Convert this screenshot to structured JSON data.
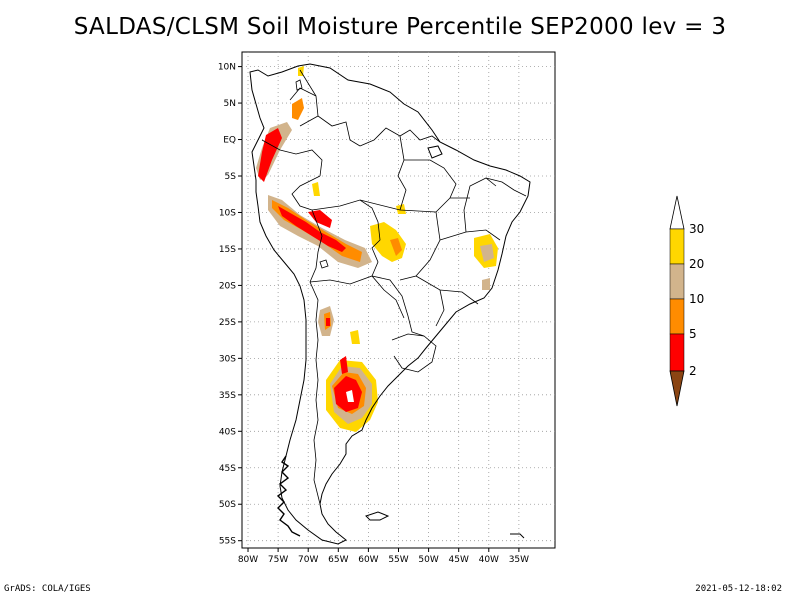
{
  "title": "SALDAS/CLSM Soil Moisture Percentile SEP2000 lev = 3",
  "footer": {
    "left": "GrADS: COLA/IGES",
    "right": "2021-05-12-18:02"
  },
  "map": {
    "lat_range": [
      -56,
      12
    ],
    "lon_range": [
      -81,
      -29
    ],
    "lat_ticks": [
      {
        "value": 10,
        "label": "10N"
      },
      {
        "value": 5,
        "label": "5N"
      },
      {
        "value": 0,
        "label": "EQ"
      },
      {
        "value": -5,
        "label": "5S"
      },
      {
        "value": -10,
        "label": "10S"
      },
      {
        "value": -15,
        "label": "15S"
      },
      {
        "value": -20,
        "label": "20S"
      },
      {
        "value": -25,
        "label": "25S"
      },
      {
        "value": -30,
        "label": "30S"
      },
      {
        "value": -35,
        "label": "35S"
      },
      {
        "value": -40,
        "label": "40S"
      },
      {
        "value": -45,
        "label": "45S"
      },
      {
        "value": -50,
        "label": "50S"
      },
      {
        "value": -55,
        "label": "55S"
      }
    ],
    "lon_ticks": [
      {
        "value": -80,
        "label": "80W"
      },
      {
        "value": -75,
        "label": "75W"
      },
      {
        "value": -70,
        "label": "70W"
      },
      {
        "value": -65,
        "label": "65W"
      },
      {
        "value": -60,
        "label": "60W"
      },
      {
        "value": -55,
        "label": "55W"
      },
      {
        "value": -50,
        "label": "50W"
      },
      {
        "value": -45,
        "label": "45W"
      },
      {
        "value": -40,
        "label": "40W"
      },
      {
        "value": -35,
        "label": "35W"
      }
    ],
    "grid": "dotted",
    "colors": {
      "lt2": "#8b4513",
      "2_5": "#ff0000",
      "5_10": "#ff8c00",
      "10_20": "#d2b48c",
      "20_30": "#ffd700",
      "gt30": "#ffffff"
    }
  },
  "colorbar": {
    "labels": [
      "30",
      "20",
      "10",
      "5",
      "2"
    ],
    "placement": "right"
  }
}
